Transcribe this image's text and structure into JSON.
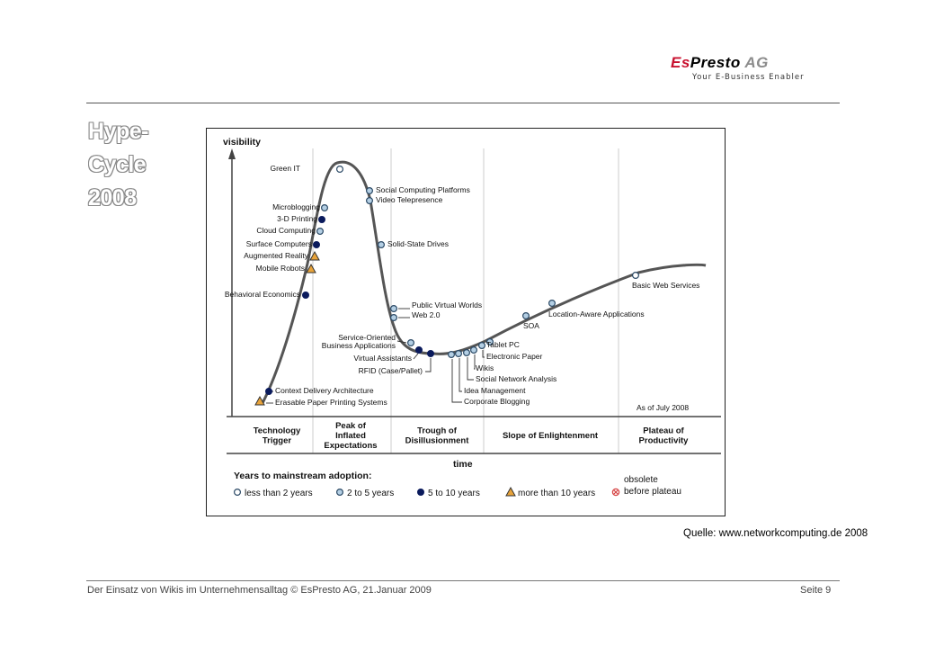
{
  "header": {
    "logo_es": "Es",
    "logo_presto": "Presto",
    "logo_ag": "AG",
    "logo_tagline": "Your E-Business Enabler"
  },
  "slide": {
    "title_lines": [
      "Hype-",
      "Cycle",
      "2008"
    ]
  },
  "diagram": {
    "y_axis_label": "visibility",
    "x_axis_label": "time",
    "as_of": "As of July 2008",
    "phases": [
      [
        "Technology",
        "Trigger"
      ],
      [
        "Peak of",
        "Inflated",
        "Expectations"
      ],
      [
        "Trough of",
        "Disillusionment"
      ],
      [
        "Slope of Enlightenment"
      ],
      [
        "Plateau of",
        "Productivity"
      ]
    ],
    "technologies": [
      {
        "label": "Green IT",
        "category": "lt2"
      },
      {
        "label": "Social Computing Platforms",
        "category": "2to5"
      },
      {
        "label": "Video Telepresence",
        "category": "2to5"
      },
      {
        "label": "Microblogging",
        "category": "2to5"
      },
      {
        "label": "3-D Printing",
        "category": "5to10"
      },
      {
        "label": "Cloud Computing",
        "category": "2to5"
      },
      {
        "label": "Surface Computers",
        "category": "5to10"
      },
      {
        "label": "Augmented Reality",
        "category": "gt10"
      },
      {
        "label": "Mobile Robots",
        "category": "gt10"
      },
      {
        "label": "Solid-State Drives",
        "category": "2to5"
      },
      {
        "label": "Behavioral Economics",
        "category": "5to10"
      },
      {
        "label": "Public Virtual Worlds",
        "category": "2to5"
      },
      {
        "label": "Web 2.0",
        "category": "2to5"
      },
      {
        "label": "Service-Oriented",
        "category": "2to5"
      },
      {
        "label": "Business Applications",
        "category": "2to5"
      },
      {
        "label": "Virtual Assistants",
        "category": "5to10"
      },
      {
        "label": "RFID (Case/Pallet)",
        "category": "5to10"
      },
      {
        "label": "Context Delivery Architecture",
        "category": "5to10"
      },
      {
        "label": "Erasable Paper Printing Systems",
        "category": "gt10"
      },
      {
        "label": "Basic Web Services",
        "category": "lt2"
      },
      {
        "label": "Location-Aware Applications",
        "category": "2to5"
      },
      {
        "label": "SOA",
        "category": "2to5"
      },
      {
        "label": "Tablet PC",
        "category": "2to5"
      },
      {
        "label": "Electronic Paper",
        "category": "2to5"
      },
      {
        "label": "Wikis",
        "category": "2to5"
      },
      {
        "label": "Social Network Analysis",
        "category": "2to5"
      },
      {
        "label": "Idea Management",
        "category": "2to5"
      },
      {
        "label": "Corporate Blogging",
        "category": "2to5"
      }
    ],
    "legend": {
      "title": "Years to mainstream adoption:",
      "items": [
        {
          "symbol": "lt2",
          "label": "less than 2 years"
        },
        {
          "symbol": "2to5",
          "label": "2 to 5 years"
        },
        {
          "symbol": "5to10",
          "label": "5 to 10 years"
        },
        {
          "symbol": "gt10",
          "label": "more than 10 years"
        },
        {
          "symbol": "obsolete",
          "label_lines": [
            "obsolete",
            "before plateau"
          ]
        }
      ]
    },
    "colors": {
      "curve": "#555555",
      "lt2": "#ffffff",
      "2to5": "#b4cfe4",
      "5to10": "#0a1a5c",
      "gt10": "#e8a33a",
      "obsolete": "#d64545"
    }
  },
  "source_text": "Quelle: www.networkcomputing.de 2008",
  "footer": {
    "left": "Der Einsatz von Wikis im Unternehmensalltag © EsPresto AG, 21.Januar 2009",
    "right": "Seite 9"
  }
}
